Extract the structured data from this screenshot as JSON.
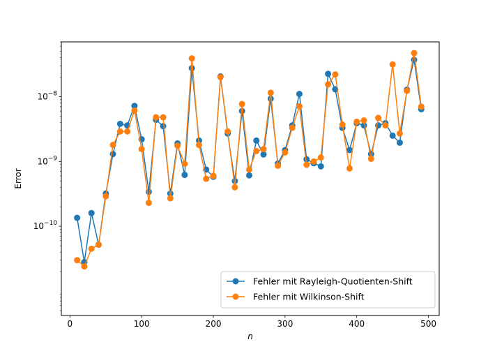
{
  "chart_data": {
    "type": "line",
    "xlabel": "n",
    "ylabel": "Error",
    "xlim": [
      -12,
      515
    ],
    "ylim": [
      4.2e-12,
      7e-08
    ],
    "yscale": "log",
    "grid": false,
    "legend_position": "lower-right",
    "xticks": [
      0,
      100,
      200,
      300,
      400,
      500
    ],
    "xtick_labels": [
      "0",
      "100",
      "200",
      "300",
      "400",
      "500"
    ],
    "yticks": [
      1e-10,
      1e-09,
      1e-08
    ],
    "ytick_labels": [
      "10",
      "10",
      "10"
    ],
    "ytick_exponents": [
      "−10",
      "−9",
      "−8"
    ],
    "x": [
      10,
      20,
      30,
      40,
      50,
      60,
      70,
      80,
      90,
      100,
      110,
      120,
      130,
      140,
      150,
      160,
      170,
      180,
      190,
      200,
      210,
      220,
      230,
      240,
      250,
      260,
      270,
      280,
      290,
      300,
      310,
      320,
      330,
      340,
      350,
      360,
      370,
      380,
      390,
      400,
      410,
      420,
      430,
      440,
      450,
      460,
      470,
      480,
      490
    ],
    "series": [
      {
        "name": "Fehler mit Rayleigh-Quotienten-Shift",
        "color": "#1f77b4",
        "values": [
          1.35e-10,
          2.8e-11,
          1.6e-10,
          5.2e-11,
          3.2e-10,
          1.3e-09,
          3.8e-09,
          3.6e-09,
          7.2e-09,
          2.2e-09,
          3.4e-10,
          4.4e-09,
          3.5e-09,
          3.2e-10,
          1.9e-09,
          6.2e-10,
          2.75e-08,
          2.1e-09,
          7.5e-10,
          5.8e-10,
          2.05e-08,
          2.7e-09,
          5e-10,
          6e-09,
          6.1e-10,
          2.1e-09,
          1.28e-09,
          9.3e-09,
          9.3e-10,
          1.5e-09,
          3.6e-09,
          1.1e-08,
          1.08e-09,
          9.4e-10,
          8.4e-10,
          2.25e-08,
          1.3e-08,
          3.3e-09,
          1.5e-09,
          3.9e-09,
          3.6e-09,
          1.3e-09,
          3.6e-09,
          3.9e-09,
          2.5e-09,
          1.95e-09,
          1.28e-08,
          3.7e-08,
          6.4e-09
        ]
      },
      {
        "name": "Fehler mit Wilkinson-Shift",
        "color": "#ff7f0e",
        "values": [
          3e-11,
          2.4e-11,
          4.5e-11,
          5.2e-11,
          2.9e-10,
          1.8e-09,
          2.9e-09,
          2.9e-09,
          6.1e-09,
          1.55e-09,
          2.3e-10,
          4.8e-09,
          4.8e-09,
          2.7e-10,
          1.75e-09,
          9.2e-10,
          3.9e-08,
          1.8e-09,
          5.4e-10,
          6e-10,
          2e-08,
          2.9e-09,
          4e-10,
          7.7e-09,
          7.5e-10,
          1.45e-09,
          1.55e-09,
          1.15e-08,
          8.6e-10,
          1.38e-09,
          3.3e-09,
          7.1e-09,
          8.9e-10,
          1e-09,
          1.15e-09,
          1.55e-08,
          2.2e-08,
          3.7e-09,
          7.8e-10,
          4.1e-09,
          4.3e-09,
          1.1e-09,
          4.7e-09,
          3.6e-09,
          3.15e-08,
          2.7e-09,
          1.23e-08,
          4.7e-08,
          7e-09
        ]
      }
    ]
  }
}
